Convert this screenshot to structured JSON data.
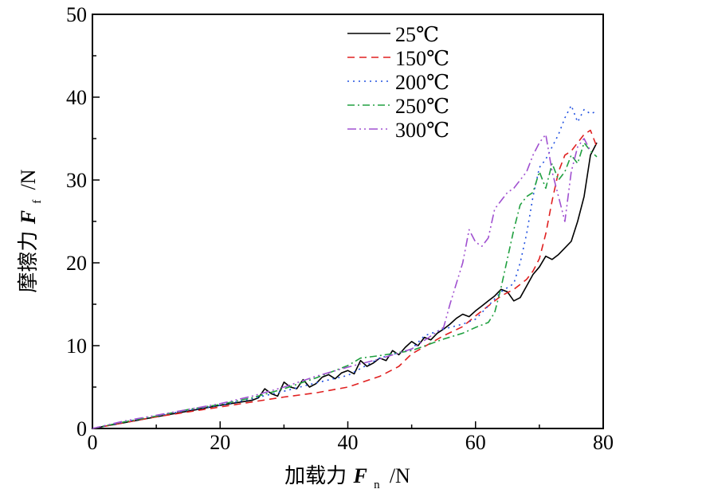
{
  "chart_data": {
    "type": "line",
    "xlabel": "加载力",
    "xlabel_var": "F",
    "xlabel_sub": "n",
    "xlabel_unit": "/N",
    "ylabel": "摩擦力",
    "ylabel_var": "F",
    "ylabel_sub": "f",
    "ylabel_unit": "/N",
    "xlim": [
      0,
      80
    ],
    "ylim": [
      0,
      50
    ],
    "x_ticks": [
      "0",
      "20",
      "40",
      "60",
      "80"
    ],
    "y_ticks": [
      "0",
      "10",
      "20",
      "30",
      "40",
      "50"
    ],
    "grid": false,
    "legend_position": "top-center",
    "series": [
      {
        "name": "25℃",
        "color": "#000000",
        "dash": "solid",
        "x": [
          0,
          5,
          10,
          15,
          20,
          25,
          26,
          27,
          28,
          29,
          30,
          31,
          32,
          33,
          34,
          35,
          36,
          37,
          38,
          39,
          40,
          41,
          42,
          43,
          44,
          45,
          46,
          47,
          48,
          49,
          50,
          51,
          52,
          53,
          54,
          55,
          56,
          57,
          58,
          59,
          60,
          61,
          62,
          63,
          64,
          65,
          66,
          67,
          68,
          69,
          70,
          71,
          72,
          73,
          74,
          75,
          76,
          77,
          78,
          79
        ],
        "y": [
          0,
          0.7,
          1.4,
          2.1,
          2.8,
          3.4,
          3.7,
          4.8,
          4.2,
          3.9,
          5.6,
          5.0,
          4.8,
          5.9,
          5.0,
          5.4,
          6.2,
          6.5,
          6.0,
          6.7,
          7.0,
          6.6,
          8.2,
          7.5,
          7.9,
          8.5,
          8.2,
          9.4,
          8.9,
          9.8,
          10.5,
          10.0,
          11.0,
          10.7,
          11.5,
          12.0,
          12.6,
          13.3,
          13.8,
          13.5,
          14.2,
          14.8,
          15.4,
          16.0,
          16.8,
          16.5,
          15.4,
          15.8,
          17.2,
          18.6,
          19.5,
          20.8,
          20.4,
          21.0,
          21.8,
          22.6,
          25.0,
          28.0,
          33.0,
          34.5
        ]
      },
      {
        "name": "150℃",
        "color": "#e02020",
        "dash": "dashed",
        "x": [
          0,
          5,
          10,
          15,
          20,
          25,
          30,
          35,
          40,
          45,
          48,
          50,
          55,
          58,
          60,
          62,
          64,
          66,
          68,
          69,
          70,
          71,
          72,
          73,
          74,
          75,
          76,
          77,
          78,
          79
        ],
        "y": [
          0,
          0.7,
          1.4,
          2.0,
          2.6,
          3.2,
          3.8,
          4.3,
          5.0,
          6.3,
          7.5,
          9.0,
          11.2,
          12.3,
          13.6,
          14.8,
          16.0,
          16.8,
          18.0,
          19.0,
          20.5,
          23.5,
          27.5,
          31.0,
          33.0,
          33.5,
          34.5,
          35.5,
          36.0,
          34.0
        ]
      },
      {
        "name": "200℃",
        "color": "#2050e0",
        "dash": "dotted",
        "x": [
          0,
          5,
          10,
          15,
          20,
          25,
          30,
          35,
          40,
          45,
          50,
          52,
          55,
          58,
          60,
          62,
          64,
          66,
          67,
          68,
          69,
          70,
          71,
          72,
          73,
          74,
          75,
          76,
          77,
          78,
          79
        ],
        "y": [
          0,
          0.8,
          1.5,
          2.2,
          2.8,
          3.6,
          4.5,
          5.5,
          6.4,
          8.5,
          9.6,
          11.2,
          12.0,
          12.6,
          13.2,
          14.8,
          16.5,
          17.5,
          20.0,
          23.5,
          28.0,
          31.5,
          32.5,
          34.0,
          35.5,
          37.5,
          39.0,
          37.0,
          38.5,
          38.0,
          38.3
        ]
      },
      {
        "name": "250℃",
        "color": "#20a040",
        "dash": "dashdot",
        "x": [
          0,
          5,
          10,
          15,
          20,
          25,
          30,
          35,
          40,
          42,
          45,
          50,
          55,
          58,
          60,
          62,
          63,
          64,
          65,
          66,
          67,
          68,
          69,
          70,
          71,
          72,
          73,
          74,
          75,
          76,
          77,
          78,
          79
        ],
        "y": [
          0,
          0.8,
          1.5,
          2.3,
          2.9,
          3.7,
          4.8,
          6.1,
          7.6,
          8.5,
          8.8,
          9.4,
          10.8,
          11.5,
          12.2,
          12.8,
          14.0,
          17.0,
          20.5,
          24.0,
          27.0,
          28.0,
          28.5,
          31.0,
          29.0,
          32.0,
          30.0,
          31.0,
          33.0,
          32.0,
          34.5,
          33.5,
          32.8
        ]
      },
      {
        "name": "300℃",
        "color": "#a050d0",
        "dash": "dashdotdot",
        "x": [
          0,
          5,
          10,
          15,
          20,
          25,
          30,
          35,
          40,
          45,
          50,
          55,
          56,
          57,
          58,
          59,
          60,
          61,
          62,
          63,
          64,
          65,
          66,
          67,
          68,
          69,
          70,
          71,
          72,
          73,
          74,
          75,
          76,
          77,
          78
        ],
        "y": [
          0,
          0.9,
          1.6,
          2.3,
          3.0,
          3.9,
          5.0,
          6.3,
          7.4,
          8.4,
          9.6,
          12.2,
          15.0,
          17.5,
          20.0,
          24.0,
          22.5,
          22.0,
          23.0,
          26.5,
          27.5,
          28.5,
          29.0,
          30.0,
          31.0,
          33.0,
          34.5,
          35.5,
          31.0,
          28.0,
          25.0,
          31.0,
          34.0,
          35.0,
          33.5
        ]
      }
    ]
  }
}
